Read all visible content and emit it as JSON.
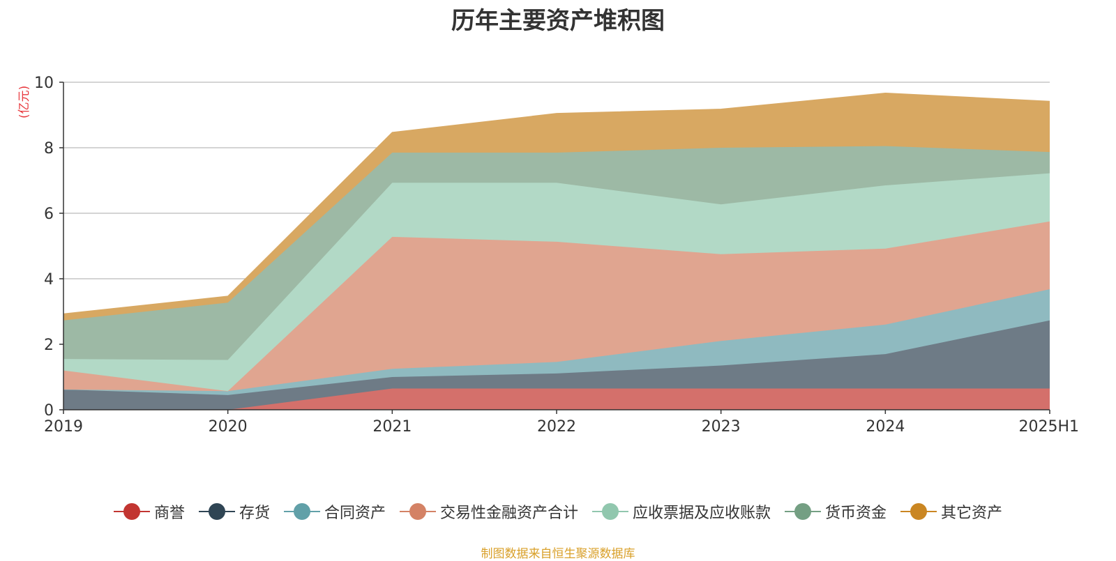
{
  "chart_data": {
    "type": "area",
    "stacked": true,
    "title": "历年主要资产堆积图",
    "ylabel": "(亿元)",
    "ylim": [
      0,
      10
    ],
    "yticks": [
      "0",
      "2",
      "4",
      "6",
      "8",
      "10"
    ],
    "grid": true,
    "legend_position": "bottom",
    "categories": [
      "2019",
      "2020",
      "2021",
      "2022",
      "2023",
      "2024",
      "2025H1"
    ],
    "series": [
      {
        "name": "商誉",
        "color": "#c23531",
        "area_color": "#d4706b",
        "values": [
          0.0,
          0.0,
          0.65,
          0.65,
          0.65,
          0.65,
          0.65
        ]
      },
      {
        "name": "存货",
        "color": "#2f4554",
        "area_color": "#6e7b86",
        "values": [
          0.62,
          0.45,
          0.35,
          0.46,
          0.7,
          1.05,
          2.08
        ]
      },
      {
        "name": "合同资产",
        "color": "#61a0a8",
        "area_color": "#8fbac0",
        "values": [
          0.0,
          0.12,
          0.25,
          0.35,
          0.75,
          0.9,
          0.95
        ]
      },
      {
        "name": "交易性金融资产合计",
        "color": "#d48265",
        "area_color": "#e0a590",
        "values": [
          0.58,
          0.0,
          4.03,
          3.67,
          2.65,
          2.32,
          2.07
        ]
      },
      {
        "name": "应收票据及应收账款",
        "color": "#91c7ae",
        "area_color": "#b2d9c6",
        "values": [
          0.35,
          0.95,
          1.65,
          1.8,
          1.52,
          1.93,
          1.47
        ]
      },
      {
        "name": "货币资金",
        "color": "#749f83",
        "area_color": "#9db9a5",
        "values": [
          1.18,
          1.75,
          0.92,
          0.92,
          1.73,
          1.2,
          0.65
        ]
      },
      {
        "name": "其它资产",
        "color": "#ca8622",
        "area_color": "#d8a862",
        "values": [
          0.2,
          0.2,
          0.62,
          1.2,
          1.18,
          1.62,
          1.55
        ]
      }
    ]
  },
  "source_note": "制图数据来自恒生聚源数据库"
}
